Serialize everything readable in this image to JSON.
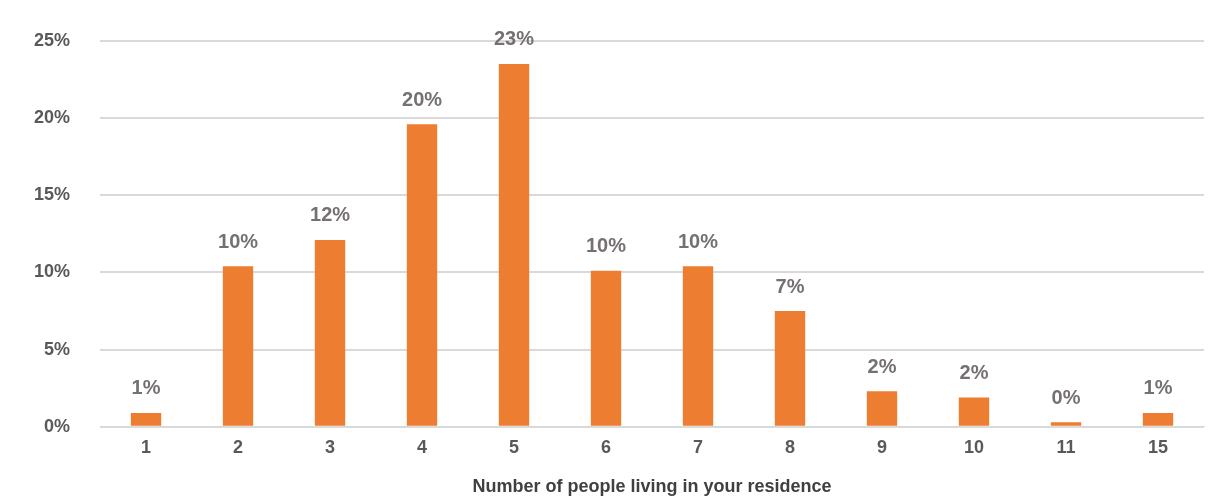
{
  "chart_data": {
    "type": "bar",
    "xlabel": "Number of people living in your residence",
    "categories": [
      "1",
      "2",
      "3",
      "4",
      "5",
      "6",
      "7",
      "8",
      "9",
      "10",
      "11",
      "15"
    ],
    "values": [
      0.9,
      10.4,
      12.1,
      19.6,
      23.5,
      10.1,
      10.4,
      7.5,
      2.3,
      1.9,
      0.3,
      0.9
    ],
    "value_labels": [
      "1%",
      "10%",
      "12%",
      "20%",
      "23%",
      "10%",
      "10%",
      "7%",
      "2%",
      "2%",
      "0%",
      "1%"
    ],
    "color": "#ed7d31",
    "ylim": [
      0,
      25
    ],
    "yticks": [
      {
        "value": 0,
        "label": "0%"
      },
      {
        "value": 5,
        "label": "5%"
      },
      {
        "value": 10,
        "label": "10%"
      },
      {
        "value": 15,
        "label": "15%"
      },
      {
        "value": 20,
        "label": "20%"
      },
      {
        "value": 25,
        "label": "25%"
      }
    ],
    "grid": "y",
    "legend": false
  }
}
